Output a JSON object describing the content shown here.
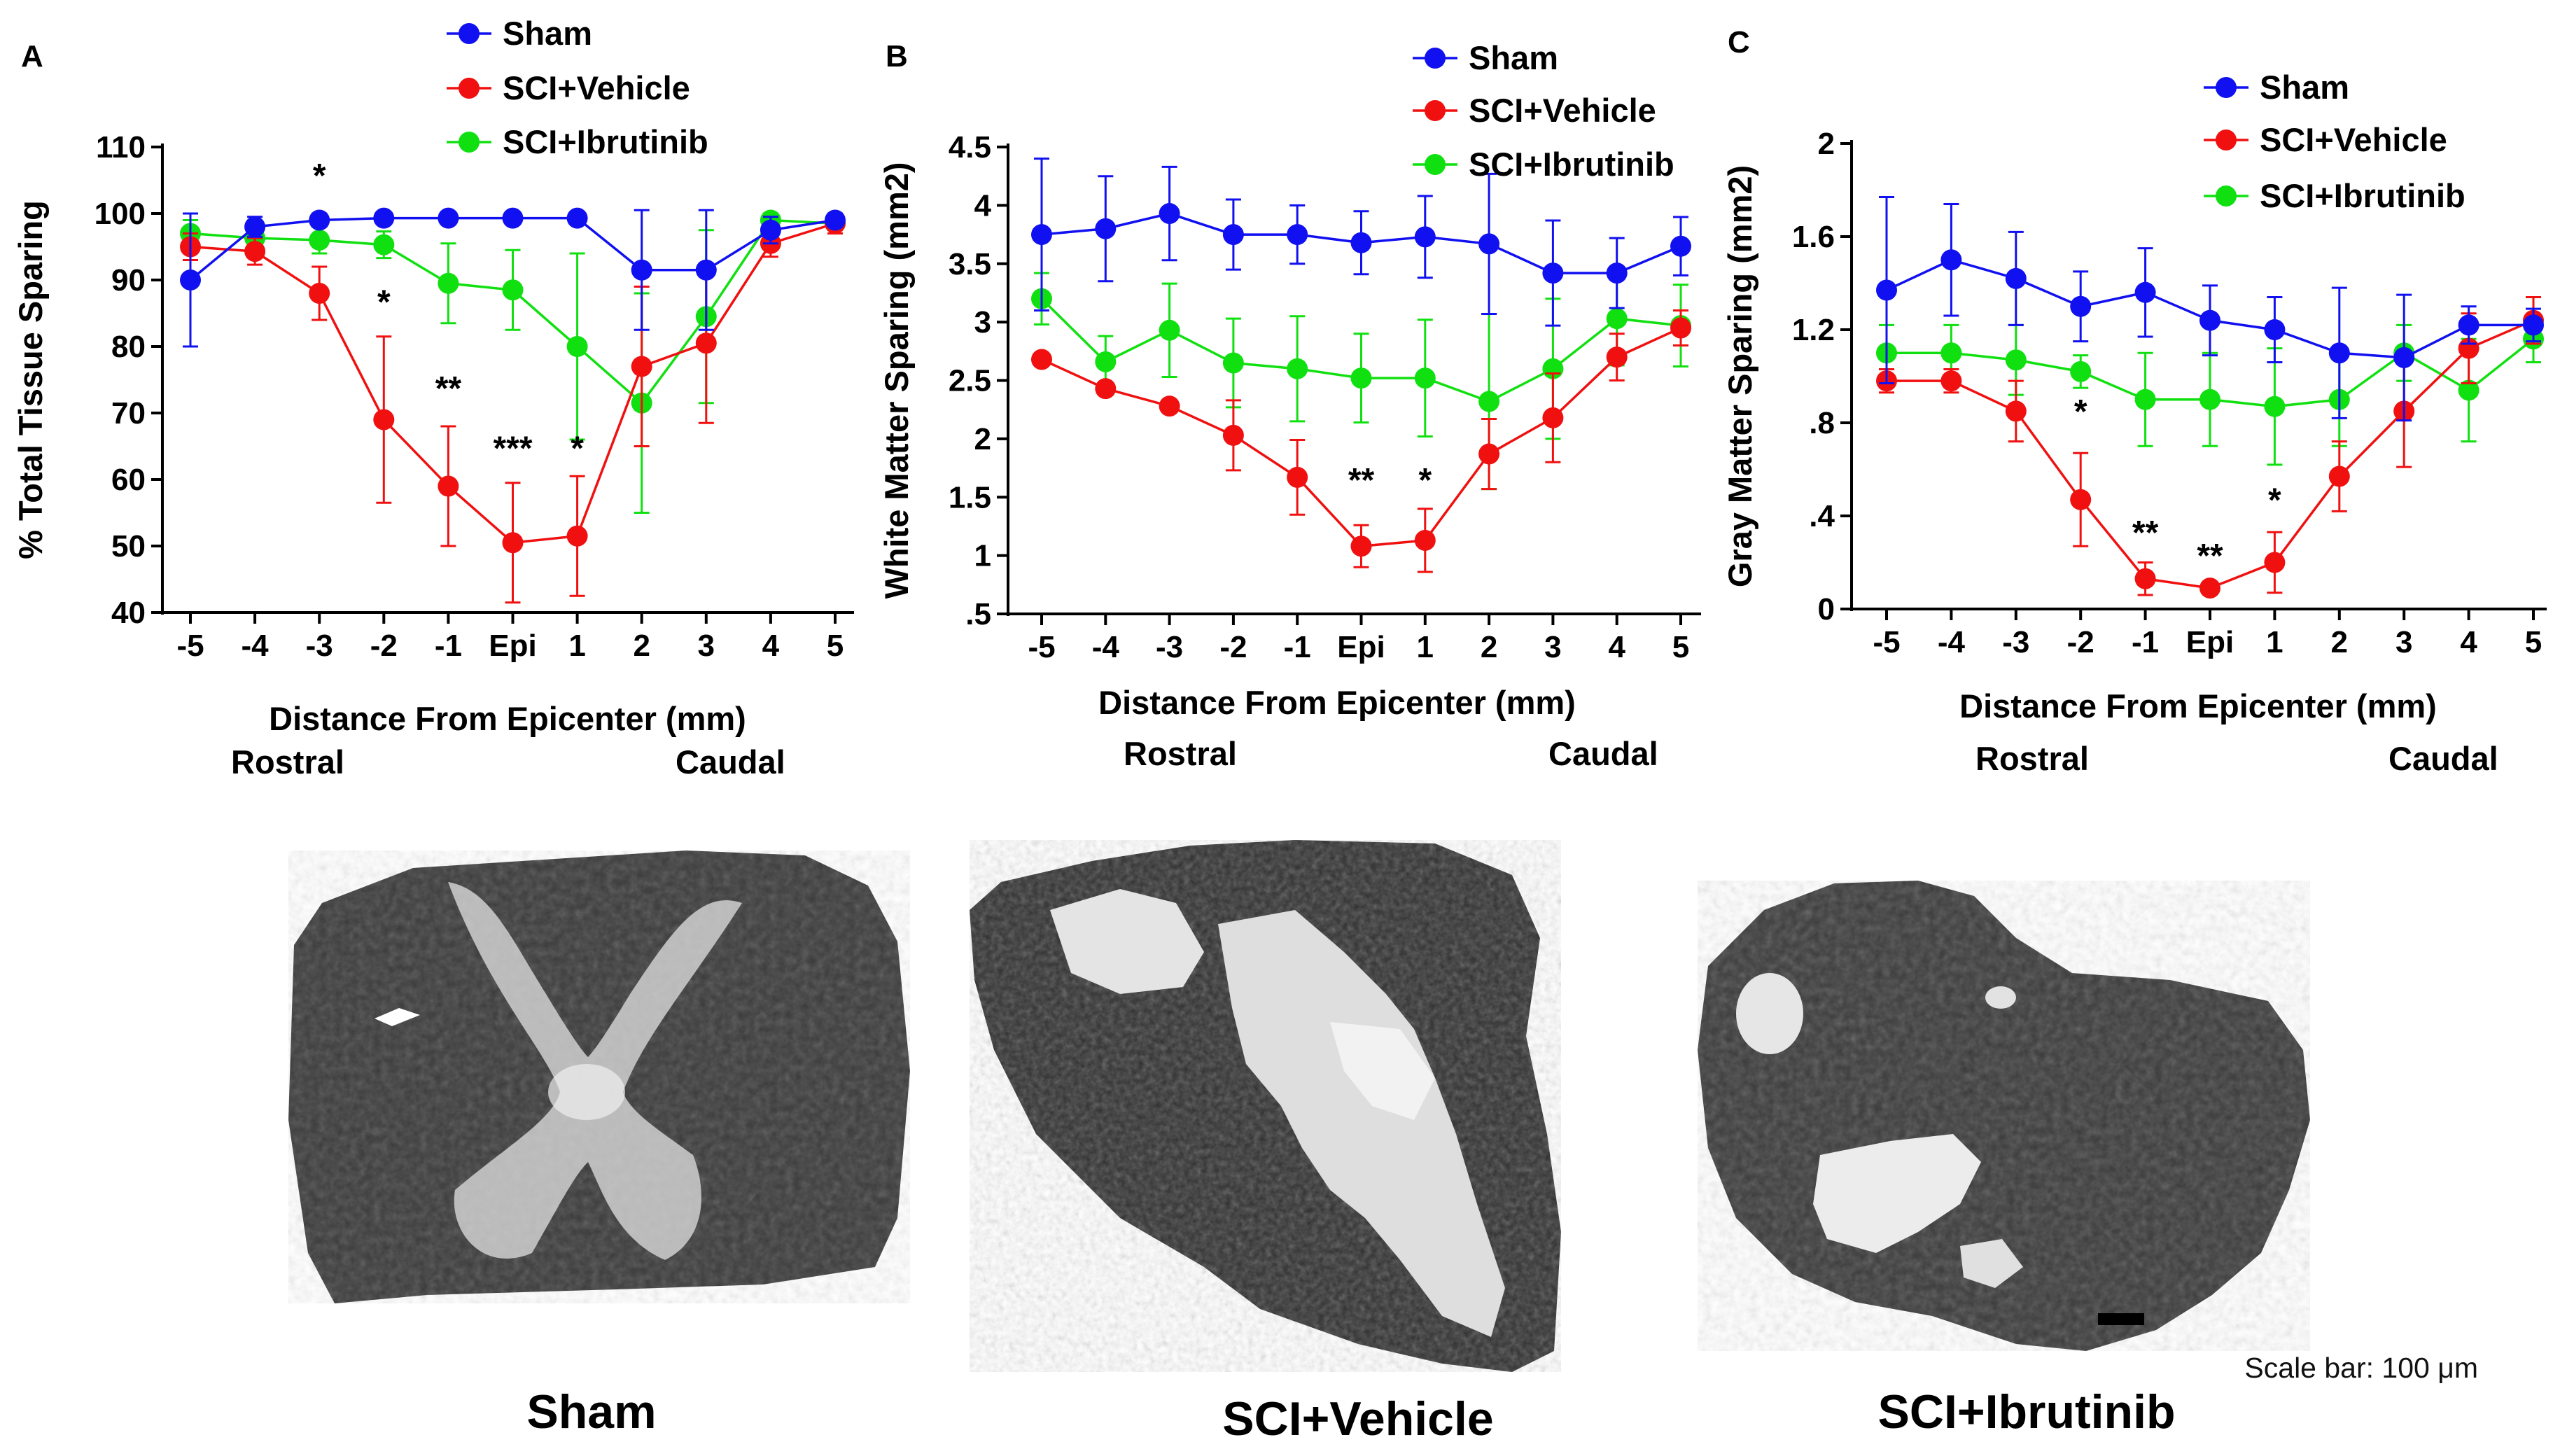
{
  "colors": {
    "sham": "#1010f0",
    "vehicle": "#f01010",
    "ibrutinib": "#10e010"
  },
  "legend": [
    "Sham",
    "SCI+Vehicle",
    "SCI+Ibrutinib"
  ],
  "categories": [
    "-5",
    "-4",
    "-3",
    "-2",
    "-1",
    "Epi",
    "1",
    "2",
    "3",
    "4",
    "5"
  ],
  "xlabel": "Distance From Epicenter (mm)",
  "direction_labels": {
    "rostral": "Rostral",
    "caudal": "Caudal"
  },
  "chart_data": [
    {
      "panel": "A",
      "type": "line",
      "ylabel": "% Total Tissue Sparing",
      "ylim": [
        40,
        110
      ],
      "yticks": [
        "40",
        "50",
        "60",
        "70",
        "80",
        "90",
        "100",
        "110"
      ],
      "series": [
        {
          "name": "Sham",
          "color_key": "sham",
          "values": [
            90,
            98,
            99,
            99.3,
            99.3,
            99.3,
            99.3,
            91.5,
            91.5,
            97.5,
            99
          ],
          "errors": [
            10,
            1.5,
            1,
            0.5,
            0.5,
            0.5,
            0.5,
            9,
            9,
            2,
            1
          ]
        },
        {
          "name": "SCI+Vehicle",
          "color_key": "vehicle",
          "values": [
            95,
            94.3,
            88,
            69,
            59,
            50.5,
            51.5,
            77,
            80.5,
            95.5,
            98.5
          ],
          "errors": [
            2,
            2,
            4,
            12.5,
            9,
            9,
            9,
            12,
            12,
            2,
            1.5
          ]
        },
        {
          "name": "SCI+Ibrutinib",
          "color_key": "ibrutinib",
          "values": [
            97,
            96.3,
            96,
            95.3,
            89.5,
            88.5,
            80,
            71.5,
            84.5,
            99,
            98.5
          ],
          "errors": [
            2,
            2,
            2,
            2,
            6,
            6,
            14,
            16.5,
            13,
            1,
            1
          ]
        }
      ],
      "significance": [
        {
          "label": "*",
          "index": 2,
          "y": 104
        },
        {
          "label": "*",
          "index": 3,
          "y": 85
        },
        {
          "label": "**",
          "index": 4,
          "y": 72
        },
        {
          "label": "***",
          "index": 5,
          "y": 63
        },
        {
          "label": "*",
          "index": 6,
          "y": 63
        }
      ]
    },
    {
      "panel": "B",
      "type": "line",
      "ylabel": "White Matter Sparing (mm2)",
      "ylim": [
        0.5,
        4.5
      ],
      "yticks": [
        ".5",
        "1",
        "1.5",
        "2",
        "2.5",
        "3",
        "3.5",
        "4",
        "4.5"
      ],
      "series": [
        {
          "name": "Sham",
          "color_key": "sham",
          "values": [
            3.75,
            3.8,
            3.93,
            3.75,
            3.75,
            3.68,
            3.73,
            3.67,
            3.42,
            3.42,
            3.65
          ],
          "errors": [
            0.65,
            0.45,
            0.4,
            0.3,
            0.25,
            0.27,
            0.35,
            0.6,
            0.45,
            0.3,
            0.25
          ]
        },
        {
          "name": "SCI+Vehicle",
          "color_key": "vehicle",
          "values": [
            2.68,
            2.43,
            2.28,
            2.03,
            1.67,
            1.08,
            1.13,
            1.87,
            2.18,
            2.7,
            2.95
          ],
          "errors": [
            0.03,
            0.05,
            0.05,
            0.3,
            0.32,
            0.18,
            0.27,
            0.3,
            0.38,
            0.2,
            0.15
          ]
        },
        {
          "name": "SCI+Ibrutinib",
          "color_key": "ibrutinib",
          "values": [
            3.2,
            2.66,
            2.93,
            2.65,
            2.6,
            2.52,
            2.52,
            2.32,
            2.6,
            3.03,
            2.97
          ],
          "errors": [
            0.22,
            0.22,
            0.4,
            0.38,
            0.45,
            0.38,
            0.5,
            0.75,
            0.6,
            0.4,
            0.35
          ]
        }
      ],
      "significance": [
        {
          "label": "**",
          "index": 5,
          "y": 1.55
        },
        {
          "label": "*",
          "index": 6,
          "y": 1.55
        }
      ]
    },
    {
      "panel": "C",
      "type": "line",
      "ylabel": "Gray Matter Sparing (mm2)",
      "ylim": [
        0,
        2
      ],
      "yticks": [
        "0",
        ".4",
        ".8",
        "1.2",
        "1.6",
        "2"
      ],
      "series": [
        {
          "name": "Sham",
          "color_key": "sham",
          "values": [
            1.37,
            1.5,
            1.42,
            1.3,
            1.36,
            1.24,
            1.2,
            1.1,
            1.08,
            1.22,
            1.22
          ],
          "errors": [
            0.4,
            0.24,
            0.2,
            0.15,
            0.19,
            0.15,
            0.14,
            0.28,
            0.27,
            0.08,
            0.07
          ]
        },
        {
          "name": "SCI+Vehicle",
          "color_key": "vehicle",
          "values": [
            0.98,
            0.98,
            0.85,
            0.47,
            0.13,
            0.09,
            0.2,
            0.57,
            0.85,
            1.12,
            1.24
          ],
          "errors": [
            0.05,
            0.05,
            0.13,
            0.2,
            0.07,
            0.02,
            0.13,
            0.15,
            0.24,
            0.15,
            0.1
          ]
        },
        {
          "name": "SCI+Ibrutinib",
          "color_key": "ibrutinib",
          "values": [
            1.1,
            1.1,
            1.07,
            1.02,
            0.9,
            0.9,
            0.87,
            0.9,
            1.1,
            0.94,
            1.16
          ],
          "errors": [
            0.12,
            0.12,
            0.15,
            0.07,
            0.2,
            0.2,
            0.25,
            0.2,
            0.12,
            0.22,
            0.1
          ]
        }
      ],
      "significance": [
        {
          "label": "*",
          "index": 3,
          "y": 0.8
        },
        {
          "label": "**",
          "index": 4,
          "y": 0.28
        },
        {
          "label": "**",
          "index": 5,
          "y": 0.18
        },
        {
          "label": "*",
          "index": 6,
          "y": 0.42
        }
      ]
    }
  ],
  "images": [
    {
      "caption": "Sham"
    },
    {
      "caption": "SCI+Vehicle"
    },
    {
      "caption": "SCI+Ibrutinib"
    }
  ],
  "scale_bar_label": "Scale bar: 100 μm"
}
